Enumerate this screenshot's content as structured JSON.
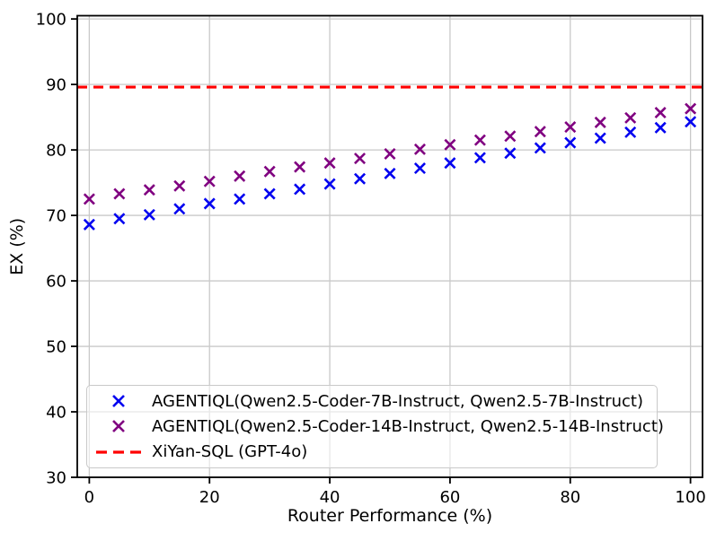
{
  "chart_data": {
    "type": "scatter",
    "title": "",
    "xlabel": "Router Performance (%)",
    "ylabel": "EX (%)",
    "x_ticks": [
      0,
      20,
      40,
      60,
      80,
      100
    ],
    "y_ticks": [
      30,
      40,
      50,
      60,
      70,
      80,
      90,
      100
    ],
    "xlim": [
      -2,
      102
    ],
    "ylim": [
      30,
      100.5
    ],
    "grid": true,
    "grid_color": "#c9c9c9",
    "legend_position": "lower-left",
    "x": [
      0,
      5,
      10,
      15,
      20,
      25,
      30,
      35,
      40,
      45,
      50,
      55,
      60,
      65,
      70,
      75,
      80,
      85,
      90,
      95,
      100
    ],
    "series": [
      {
        "name": "AGENTIQL(Qwen2.5-Coder-7B-Instruct, Qwen2.5-7B-Instruct)",
        "marker": "x",
        "color": "#0000f0",
        "values": [
          68.6,
          69.5,
          70.1,
          71.0,
          71.8,
          72.5,
          73.3,
          74.0,
          74.8,
          75.6,
          76.4,
          77.2,
          78.0,
          78.8,
          79.5,
          80.3,
          81.1,
          81.8,
          82.7,
          83.4,
          84.3
        ]
      },
      {
        "name": "AGENTIQL(Qwen2.5-Coder-14B-Instruct, Qwen2.5-14B-Instruct)",
        "marker": "x",
        "color": "#800080",
        "values": [
          72.5,
          73.3,
          73.9,
          74.5,
          75.2,
          76.0,
          76.7,
          77.4,
          78.0,
          78.7,
          79.4,
          80.1,
          80.8,
          81.5,
          82.1,
          82.8,
          83.5,
          84.2,
          84.9,
          85.7,
          86.3
        ]
      }
    ],
    "hline": {
      "name": "XiYan-SQL (GPT-4o)",
      "value": 89.6,
      "color": "#ff0000",
      "style": "dashed"
    }
  }
}
